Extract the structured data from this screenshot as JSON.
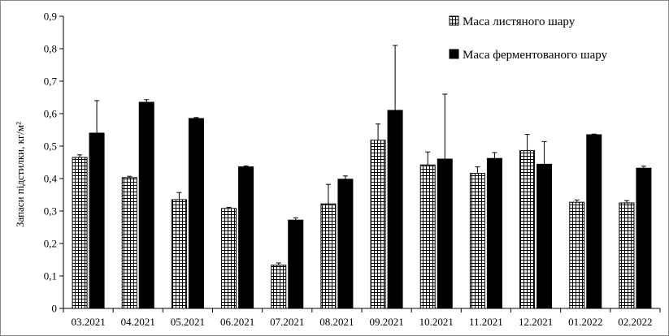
{
  "chart_data": {
    "type": "bar",
    "title": "",
    "xlabel": "",
    "ylabel": "Запаси підстилки, кг/м²",
    "ylim": [
      0,
      0.9
    ],
    "yticks": [
      "0",
      "0,1",
      "0,2",
      "0,3",
      "0,4",
      "0,5",
      "0,6",
      "0,7",
      "0,8",
      "0,9"
    ],
    "ytick_values": [
      0,
      0.1,
      0.2,
      0.3,
      0.4,
      0.5,
      0.6,
      0.7,
      0.8,
      0.9
    ],
    "grid": false,
    "legend_position": "top-right",
    "categories": [
      "03.2021",
      "04.2021",
      "05.2021",
      "06.2021",
      "07.2021",
      "08.2021",
      "09.2021",
      "10.2021",
      "11.2021",
      "12.2021",
      "01.2022",
      "02.2022"
    ],
    "series": [
      {
        "name": "Маса листяного шару",
        "pattern": "grid",
        "color": "#000000",
        "values": [
          0.465,
          0.403,
          0.335,
          0.308,
          0.133,
          0.322,
          0.518,
          0.442,
          0.416,
          0.486,
          0.327,
          0.325
        ],
        "errors": [
          0.008,
          0.004,
          0.022,
          0.003,
          0.007,
          0.06,
          0.05,
          0.04,
          0.02,
          0.05,
          0.007,
          0.007
        ]
      },
      {
        "name": "Маса ферментованого шару",
        "pattern": "solid",
        "color": "#000000",
        "values": [
          0.54,
          0.635,
          0.585,
          0.436,
          0.272,
          0.398,
          0.61,
          0.46,
          0.462,
          0.444,
          0.535,
          0.432
        ],
        "errors": [
          0.1,
          0.008,
          0.003,
          0.003,
          0.007,
          0.01,
          0.2,
          0.2,
          0.018,
          0.07,
          0.002,
          0.006
        ]
      }
    ]
  }
}
